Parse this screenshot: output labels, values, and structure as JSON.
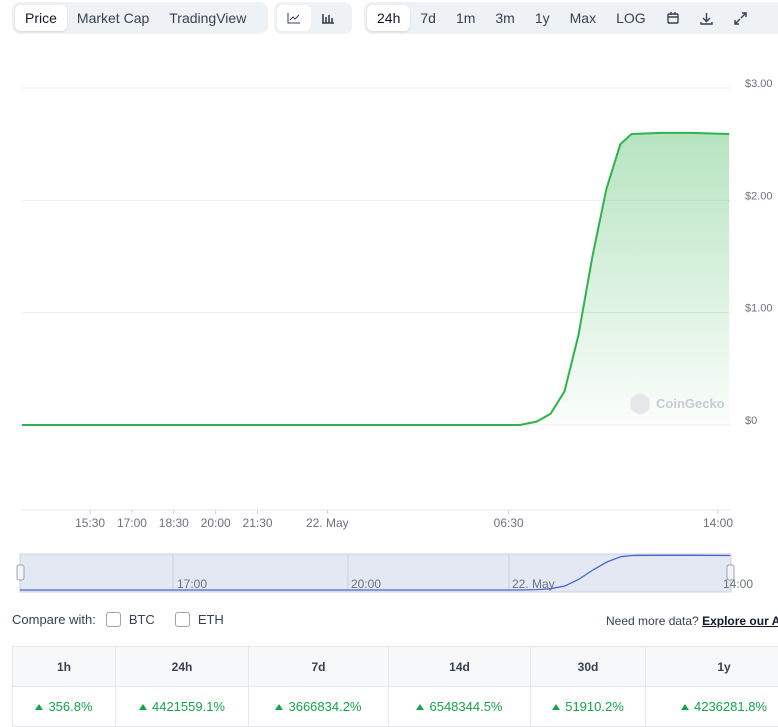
{
  "toolbar": {
    "tabs": [
      "Price",
      "Market Cap",
      "TradingView"
    ],
    "ranges": [
      "24h",
      "7d",
      "1m",
      "3m",
      "1y",
      "Max",
      "LOG"
    ]
  },
  "chart_data": {
    "type": "line",
    "color": "#2fb24c",
    "grid": true,
    "x": [
      13.06,
      20,
      26,
      30.9,
      31.5,
      32,
      32.5,
      33,
      33.5,
      34,
      34.5,
      34.9,
      36,
      37,
      38.4
    ],
    "values": [
      0,
      0,
      0,
      0,
      0.03,
      0.1,
      0.3,
      0.8,
      1.5,
      2.1,
      2.5,
      2.59,
      2.6,
      2.6,
      2.59
    ],
    "xlim": [
      13.06,
      38.43
    ],
    "xticks": [
      {
        "value": 15.5,
        "label": "15:30"
      },
      {
        "value": 17,
        "label": "17:00"
      },
      {
        "value": 18.5,
        "label": "18:30"
      },
      {
        "value": 20,
        "label": "20:00"
      },
      {
        "value": 21.5,
        "label": "21:30"
      },
      {
        "value": 24,
        "label": "22. May"
      },
      {
        "value": 30.5,
        "label": "06:30"
      },
      {
        "value": 38,
        "label": "14:00"
      }
    ],
    "ylim": [
      0,
      3
    ],
    "yticks": [
      {
        "value": 0,
        "label": "$0"
      },
      {
        "value": 1,
        "label": "$1.00"
      },
      {
        "value": 2,
        "label": "$2.00"
      },
      {
        "value": 3,
        "label": "$3.00"
      }
    ],
    "watermark": "CoinGecko"
  },
  "navigator": {
    "labels": [
      "17:00",
      "20:00",
      "22. May",
      "14:00"
    ]
  },
  "compare": {
    "label": "Compare with:",
    "options": [
      "BTC",
      "ETH"
    ],
    "more": "Need more data?",
    "link": "Explore our API"
  },
  "table": {
    "headers": [
      "1h",
      "24h",
      "7d",
      "14d",
      "30d",
      "1y"
    ],
    "rows": [
      [
        "356.8%",
        "4421559.1%",
        "3666834.2%",
        "6548344.5%",
        "51910.2%",
        "4236281.8%"
      ]
    ]
  }
}
